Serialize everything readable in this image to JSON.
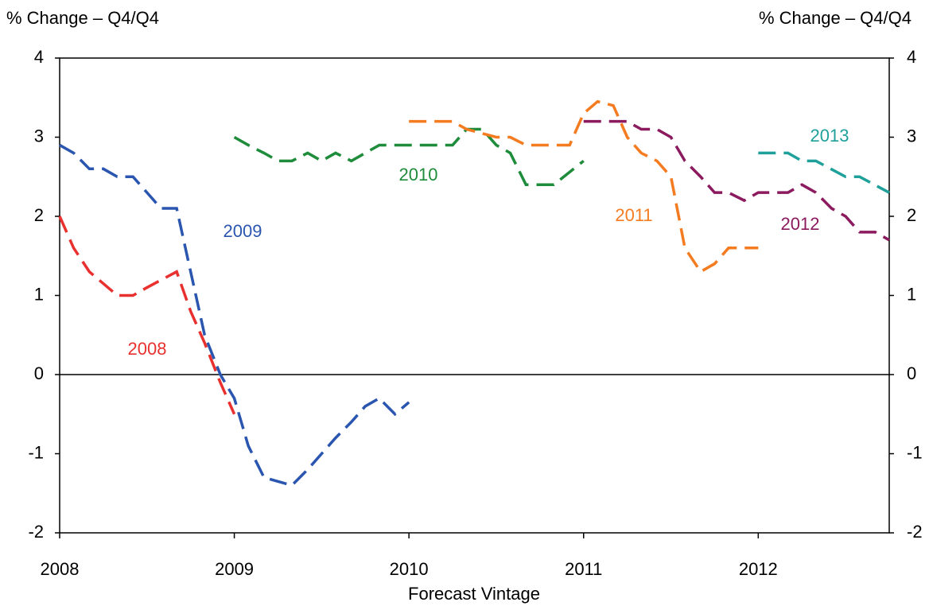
{
  "chart_data": {
    "type": "line",
    "y_label": "% Change – Q4/Q4",
    "y2_label": "% Change – Q4/Q4",
    "x_label": "Forecast Vintage",
    "xlim": [
      2008,
      2012.75
    ],
    "xticks": [
      2008,
      2009,
      2010,
      2011,
      2012
    ],
    "ylim": [
      -2,
      4
    ],
    "yticks": [
      -2,
      -1,
      0,
      1,
      2,
      3,
      4
    ],
    "y2lim": [
      -2,
      4
    ],
    "y2ticks": [
      -2,
      -1,
      0,
      1,
      2,
      3,
      4
    ],
    "series": [
      {
        "name": "2008",
        "color": "#e8312f",
        "x": [
          2008.0,
          2008.08,
          2008.17,
          2008.33,
          2008.42,
          2008.5,
          2008.67,
          2008.75,
          2008.83,
          2008.92,
          2009.0
        ],
        "values": [
          2.0,
          1.6,
          1.3,
          1.0,
          1.0,
          1.1,
          1.3,
          0.8,
          0.4,
          -0.1,
          -0.5
        ]
      },
      {
        "name": "2009",
        "color": "#2a56b0",
        "x": [
          2008.0,
          2008.08,
          2008.17,
          2008.25,
          2008.33,
          2008.42,
          2008.5,
          2008.58,
          2008.67,
          2008.75,
          2008.83,
          2008.92,
          2009.0,
          2009.08,
          2009.17,
          2009.33,
          2009.42,
          2009.5,
          2009.58,
          2009.67,
          2009.75,
          2009.83,
          2009.92,
          2010.0
        ],
        "values": [
          2.9,
          2.8,
          2.6,
          2.6,
          2.5,
          2.5,
          2.3,
          2.1,
          2.1,
          1.3,
          0.5,
          0.0,
          -0.3,
          -0.9,
          -1.3,
          -1.4,
          -1.2,
          -1.0,
          -0.8,
          -0.6,
          -0.4,
          -0.3,
          -0.5,
          -0.35
        ]
      },
      {
        "name": "2010",
        "color": "#1e8c3a",
        "x": [
          2009.0,
          2009.08,
          2009.17,
          2009.25,
          2009.33,
          2009.42,
          2009.5,
          2009.58,
          2009.67,
          2009.75,
          2009.83,
          2010.0,
          2010.25,
          2010.33,
          2010.42,
          2010.5,
          2010.58,
          2010.67,
          2010.83,
          2011.0
        ],
        "values": [
          3.0,
          2.9,
          2.8,
          2.7,
          2.7,
          2.8,
          2.7,
          2.8,
          2.7,
          2.8,
          2.9,
          2.9,
          2.9,
          3.1,
          3.1,
          2.9,
          2.8,
          2.4,
          2.4,
          2.7
        ]
      },
      {
        "name": "2011",
        "color": "#f47b20",
        "x": [
          2010.0,
          2010.25,
          2010.33,
          2010.5,
          2010.58,
          2010.67,
          2010.83,
          2010.92,
          2011.0,
          2011.08,
          2011.17,
          2011.25,
          2011.33,
          2011.42,
          2011.5,
          2011.58,
          2011.67,
          2011.75,
          2011.83,
          2012.0
        ],
        "values": [
          3.2,
          3.2,
          3.1,
          3.0,
          3.0,
          2.9,
          2.9,
          2.9,
          3.3,
          3.45,
          3.4,
          3.0,
          2.8,
          2.7,
          2.5,
          1.6,
          1.3,
          1.4,
          1.6,
          1.6
        ]
      },
      {
        "name": "2012",
        "color": "#8b1a5e",
        "x": [
          2011.0,
          2011.25,
          2011.33,
          2011.42,
          2011.5,
          2011.58,
          2011.67,
          2011.75,
          2011.83,
          2011.92,
          2012.0,
          2012.17,
          2012.25,
          2012.33,
          2012.42,
          2012.5,
          2012.58,
          2012.67,
          2012.75
        ],
        "values": [
          3.2,
          3.2,
          3.1,
          3.1,
          3.0,
          2.7,
          2.5,
          2.3,
          2.3,
          2.2,
          2.3,
          2.3,
          2.4,
          2.3,
          2.1,
          2.0,
          1.8,
          1.8,
          1.7
        ]
      },
      {
        "name": "2013",
        "color": "#1fa09a",
        "x": [
          2012.0,
          2012.17,
          2012.25,
          2012.33,
          2012.5,
          2012.58,
          2012.75
        ],
        "values": [
          2.8,
          2.8,
          2.7,
          2.7,
          2.5,
          2.5,
          2.3
        ]
      }
    ]
  }
}
